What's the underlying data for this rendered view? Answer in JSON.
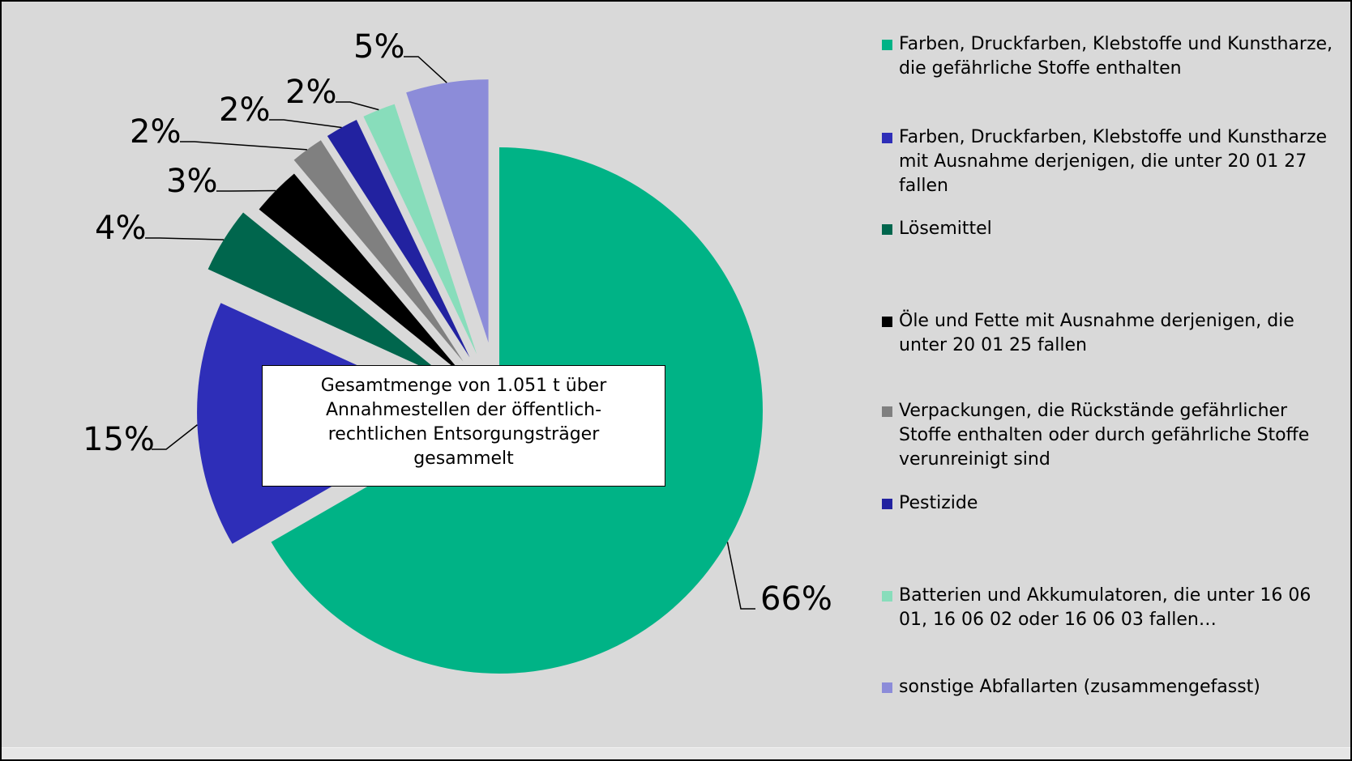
{
  "chart_data": {
    "type": "pie",
    "categories": [
      "Farben, Druckfarben, Klebstoffe und Kunstharze, die gefährliche Stoffe enthalten",
      "Farben, Druckfarben, Klebstoffe und Kunstharze mit Ausnahme derjenigen, die unter 20 01 27 fallen",
      "Lösemittel",
      "Öle und Fette mit Ausnahme derjenigen, die unter 20 01 25 fallen",
      "Verpackungen, die Rückstände gefährlicher Stoffe enthalten oder durch gefährliche Stoffe verunreinigt sind",
      "Pestizide",
      "Batterien und Akkumulatoren, die unter 16 06 01, 16 06 02 oder 16 06 03 fallen…",
      "sonstige Abfallarten (zusammengefasst)"
    ],
    "values": [
      66,
      15,
      4,
      3,
      2,
      2,
      2,
      5
    ],
    "value_labels": [
      "66%",
      "15%",
      "4%",
      "3%",
      "2%",
      "2%",
      "2%",
      "5%"
    ],
    "colors": [
      "#00b386",
      "#2e2eb8",
      "#00664d",
      "#000000",
      "#808080",
      "#2222a0",
      "#88ddbb",
      "#8c8cd9"
    ],
    "annotation": "Gesamtmenge von 1.051 t über Annahmestellen der öffentlich-rechtlichen Entsorgungsträger gesammelt",
    "legend": "right"
  }
}
